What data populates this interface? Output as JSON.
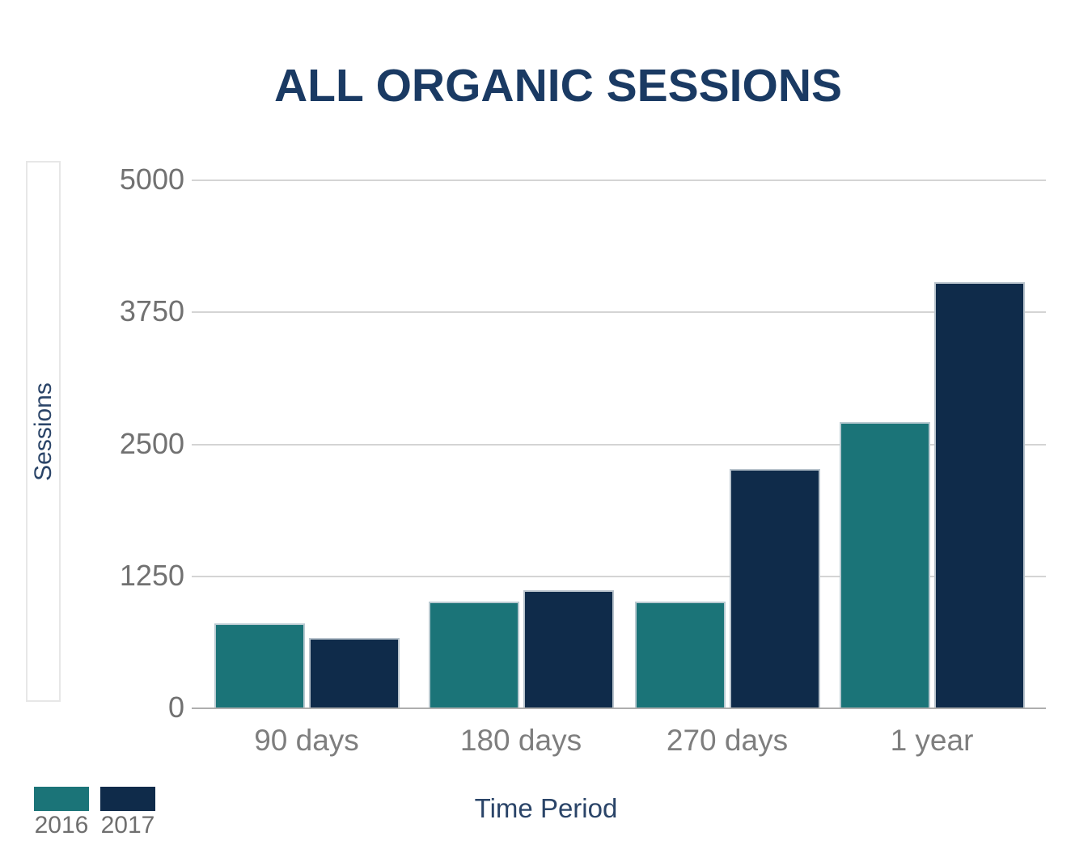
{
  "chart_data": {
    "type": "bar",
    "title": "ALL ORGANIC SESSIONS",
    "xlabel": "Time Period",
    "ylabel": "Sessions",
    "categories": [
      "90 days",
      "180 days",
      "270 days",
      "1 year"
    ],
    "series": [
      {
        "name": "2016",
        "color": "#1b7478",
        "values": [
          800,
          1000,
          1000,
          2700
        ]
      },
      {
        "name": "2017",
        "color": "#0f2b4a",
        "values": [
          660,
          1110,
          2260,
          4030
        ]
      }
    ],
    "ylim": [
      0,
      5000
    ],
    "yticks": [
      0,
      1250,
      2500,
      3750,
      5000
    ],
    "grid": "horizontal",
    "legend_position": "bottom-left"
  },
  "colors": {
    "title": "#1a3a63",
    "axis_title": "#2a4468",
    "tick_label": "#717171",
    "category_label": "#7e7e7e",
    "gridline": "#d4d4d4",
    "baseline": "#aeaeae",
    "bar_border": "#cbd4da",
    "axis_box_border": "#e7e7e7",
    "background": "#ffffff"
  }
}
